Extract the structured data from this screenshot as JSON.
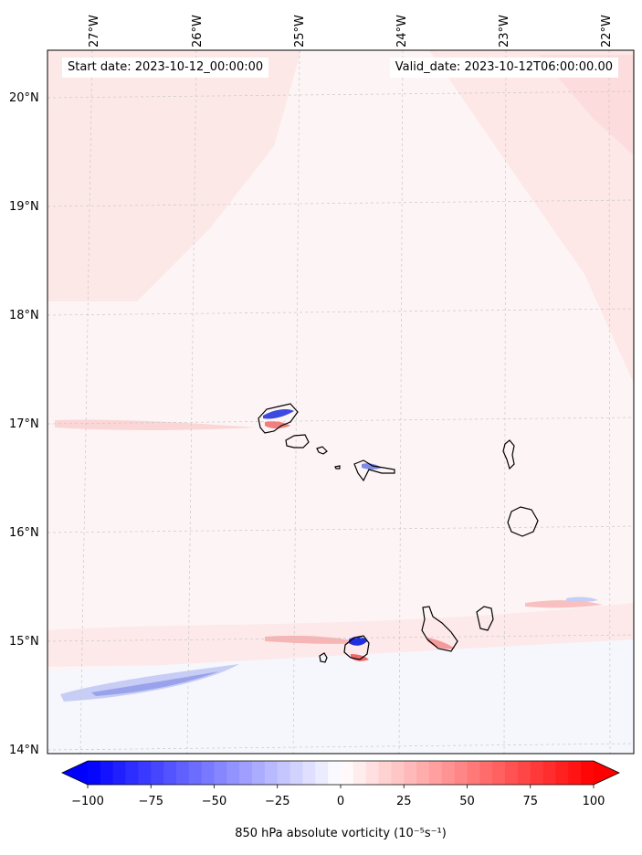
{
  "map": {
    "start_date_label": "Start date: 2023-10-12_00:00:00",
    "valid_date_label": "Valid_date: 2023-10-12T06:00:00.00",
    "lon_ticks": [
      "27°W",
      "26°W",
      "25°W",
      "24°W",
      "23°W",
      "22°W"
    ],
    "lat_ticks": [
      "20°N",
      "19°N",
      "18°N",
      "17°N",
      "16°N",
      "15°N",
      "14°N"
    ],
    "field": "850 hPa absolute vorticity",
    "background_color": "#fdf5f5",
    "coastline_color": "#000000"
  },
  "colorbar": {
    "min": -100,
    "max": 100,
    "ticks": [
      "−100",
      "−75",
      "−50",
      "−25",
      "0",
      "25",
      "50",
      "75",
      "100"
    ],
    "label": "850 hPa absolute vorticity (10⁻⁵s⁻¹)",
    "colormap": "bwr",
    "low_color": "#0000ff",
    "mid_color": "#ffffff",
    "high_color": "#ff0000"
  }
}
